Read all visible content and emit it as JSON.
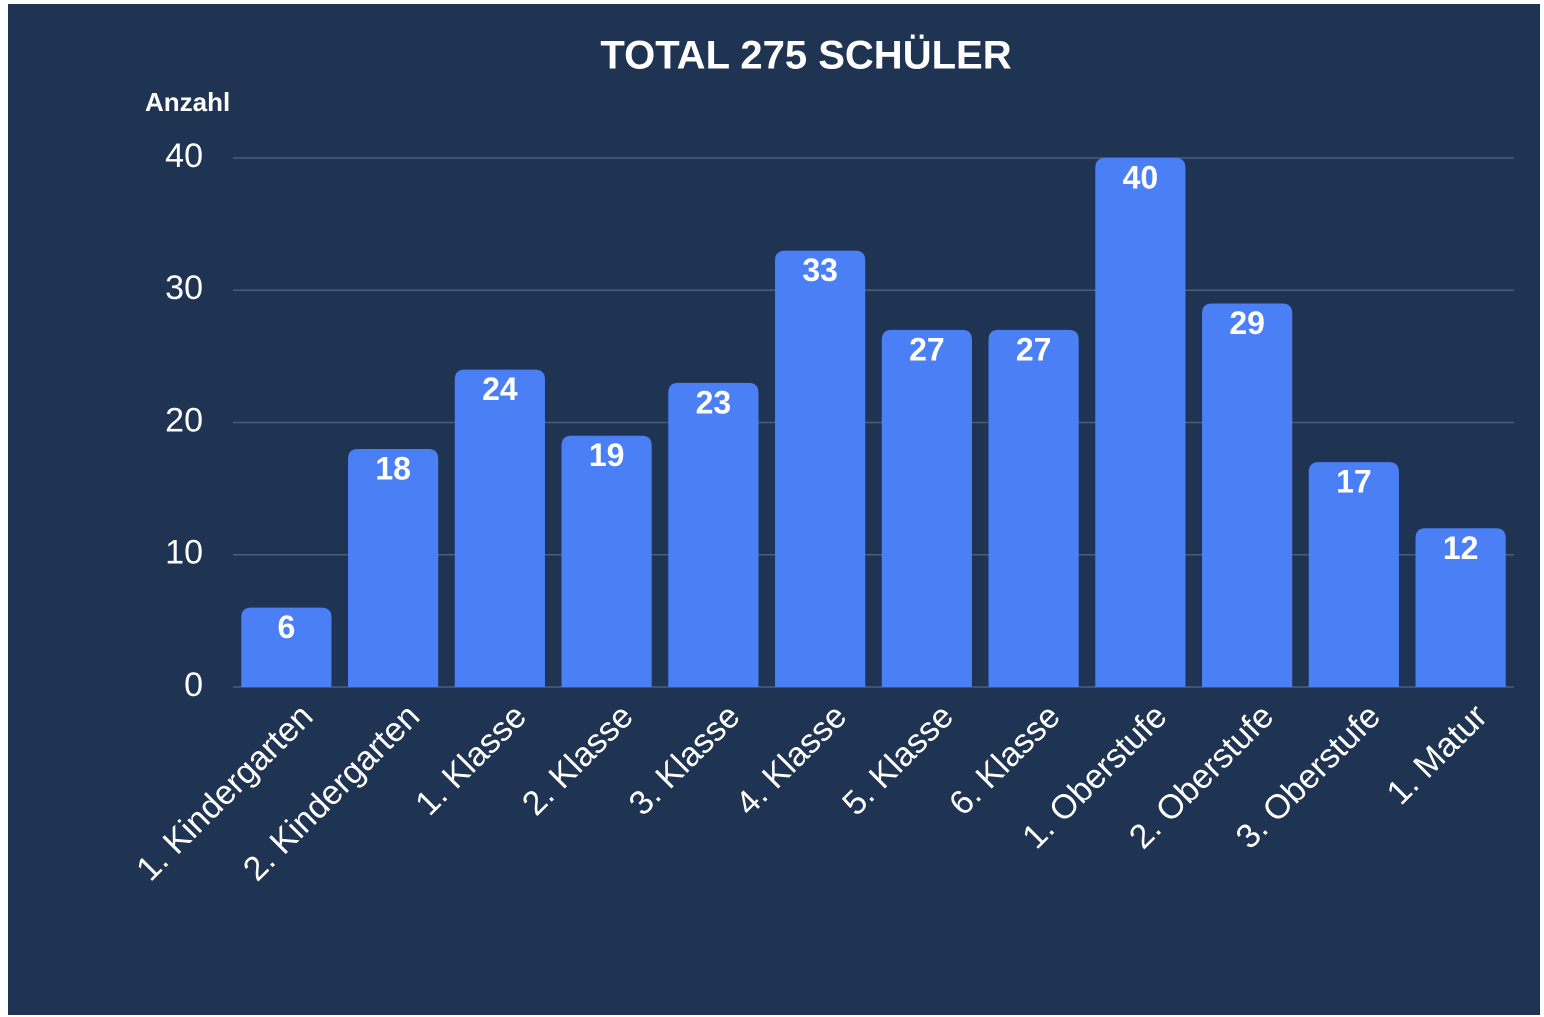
{
  "chart_data": {
    "type": "bar",
    "title": "TOTAL 275 SCHÜLER",
    "y_label": "Anzahl",
    "categories": [
      "1. Kindergarten",
      "2. Kindergarten",
      "1. Klasse",
      "2. Klasse",
      "3. Klasse",
      "4. Klasse",
      "5. Klasse",
      "6. Klasse",
      "1. Oberstufe",
      "2. Oberstufe",
      "3. Oberstufe",
      "1. Matur"
    ],
    "values": [
      6,
      18,
      24,
      19,
      23,
      33,
      27,
      27,
      40,
      29,
      17,
      12
    ],
    "color": "#4a7ff5",
    "ylim": [
      0,
      40
    ],
    "yticks": [
      0,
      10,
      20,
      30,
      40
    ],
    "grid": true
  }
}
